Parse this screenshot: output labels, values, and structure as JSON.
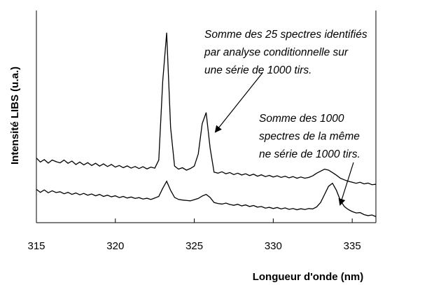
{
  "chart_data": {
    "type": "line",
    "xlabel": "Longueur d'onde (nm)",
    "ylabel": "Intensité LIBS (u.a.)",
    "xlim": [
      315,
      336.5
    ],
    "xticks": [
      315,
      320,
      325,
      330,
      335
    ],
    "ylim": [
      -0.5,
      10
    ],
    "x": [
      315,
      315.25,
      315.5,
      315.75,
      316,
      316.25,
      316.5,
      316.75,
      317,
      317.25,
      317.5,
      317.75,
      318,
      318.25,
      318.5,
      318.75,
      319,
      319.25,
      319.5,
      319.75,
      320,
      320.25,
      320.5,
      320.75,
      321,
      321.25,
      321.5,
      321.75,
      322,
      322.25,
      322.5,
      322.75,
      323,
      323.25,
      323.5,
      323.75,
      324,
      324.25,
      324.5,
      324.75,
      325,
      325.25,
      325.5,
      325.75,
      326,
      326.25,
      326.5,
      326.75,
      327,
      327.25,
      327.5,
      327.75,
      328,
      328.25,
      328.5,
      328.75,
      329,
      329.25,
      329.5,
      329.75,
      330,
      330.25,
      330.5,
      330.75,
      331,
      331.25,
      331.5,
      331.75,
      332,
      332.25,
      332.5,
      332.75,
      333,
      333.25,
      333.5,
      333.75,
      334,
      334.25,
      334.5,
      334.75,
      335,
      335.25,
      335.5,
      335.75,
      336,
      336.25,
      336.5
    ],
    "series": [
      {
        "color": "#000000",
        "values": [
          2.7,
          2.5,
          2.62,
          2.45,
          2.6,
          2.52,
          2.46,
          2.6,
          2.44,
          2.55,
          2.38,
          2.5,
          2.36,
          2.47,
          2.33,
          2.44,
          2.3,
          2.41,
          2.28,
          2.38,
          2.25,
          2.33,
          2.22,
          2.31,
          2.2,
          2.28,
          2.18,
          2.27,
          2.16,
          2.25,
          2.2,
          2.6,
          6.5,
          8.9,
          4.2,
          2.3,
          2.15,
          2.22,
          2.1,
          2.18,
          2.3,
          2.9,
          4.4,
          4.95,
          3.2,
          2.0,
          1.95,
          2.02,
          1.92,
          1.98,
          1.88,
          1.95,
          1.86,
          1.92,
          1.83,
          1.9,
          1.8,
          1.87,
          1.78,
          1.84,
          1.76,
          1.82,
          1.74,
          1.8,
          1.72,
          1.78,
          1.7,
          1.76,
          1.7,
          1.74,
          1.82,
          1.95,
          2.05,
          2.15,
          2.1,
          1.98,
          1.85,
          1.7,
          1.62,
          1.55,
          1.5,
          1.45,
          1.5,
          1.42,
          1.46,
          1.38,
          1.4
        ]
      },
      {
        "color": "#000000",
        "values": [
          1.15,
          1.0,
          1.12,
          0.98,
          1.08,
          0.99,
          1.03,
          0.93,
          1.0,
          0.9,
          0.97,
          0.88,
          0.95,
          0.86,
          0.92,
          0.83,
          0.9,
          0.8,
          0.86,
          0.78,
          0.83,
          0.74,
          0.8,
          0.72,
          0.77,
          0.7,
          0.74,
          0.67,
          0.71,
          0.65,
          0.72,
          0.8,
          1.2,
          1.55,
          1.1,
          0.75,
          0.65,
          0.62,
          0.6,
          0.58,
          0.64,
          0.7,
          0.82,
          0.9,
          0.75,
          0.5,
          0.45,
          0.42,
          0.47,
          0.4,
          0.36,
          0.41,
          0.33,
          0.38,
          0.3,
          0.35,
          0.27,
          0.3,
          0.22,
          0.26,
          0.2,
          0.25,
          0.18,
          0.23,
          0.16,
          0.2,
          0.14,
          0.19,
          0.15,
          0.2,
          0.18,
          0.28,
          0.5,
          0.9,
          1.3,
          1.45,
          1.1,
          0.6,
          0.3,
          0.15,
          0.05,
          -0.02,
          0.0,
          -0.1,
          -0.15,
          -0.12,
          -0.2
        ]
      }
    ],
    "annotations": [
      {
        "lines": [
          "Somme des 25 spectres identifiés",
          "par analyse conditionnelle sur",
          "une série de 1000 tirs."
        ]
      },
      {
        "lines": [
          "Somme des 1000",
          "spectres de la même",
          "ne série de 1000 tirs."
        ]
      }
    ]
  }
}
